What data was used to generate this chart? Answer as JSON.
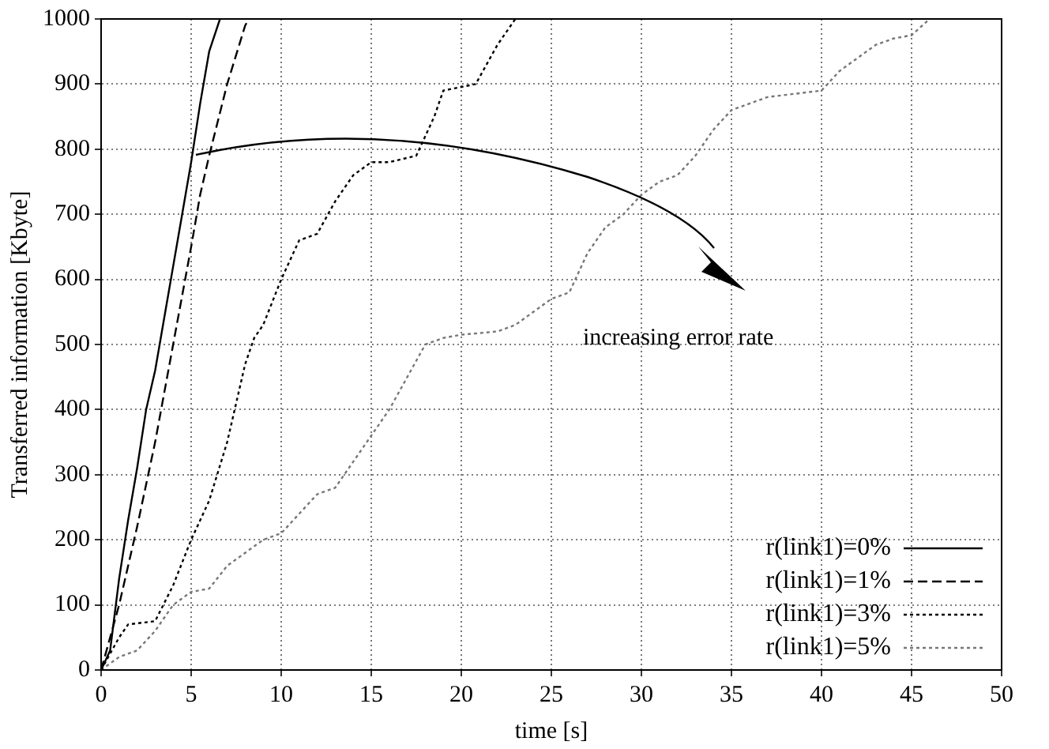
{
  "chart_data": {
    "type": "line",
    "xlabel": "time [s]",
    "ylabel": "Transferred information [Kbyte]",
    "xlim": [
      0,
      50
    ],
    "xticks": [
      0,
      5,
      10,
      15,
      20,
      25,
      30,
      35,
      40,
      45,
      50
    ],
    "ylim": [
      0,
      1000
    ],
    "yticks": [
      0,
      100,
      200,
      300,
      400,
      500,
      600,
      700,
      800,
      900,
      1000
    ],
    "grid": true,
    "legend": "bottom right",
    "marker": "none",
    "annotations": [
      "increasing error rate"
    ],
    "series": [
      {
        "name": "r(link1)=0%",
        "color": "#000000",
        "line_style": "solid",
        "x": [
          0,
          0.5,
          1,
          1.5,
          2,
          2.5,
          3,
          3.5,
          4,
          4.5,
          5,
          5.5,
          6,
          6.6
        ],
        "values": [
          0,
          30,
          140,
          230,
          310,
          400,
          460,
          540,
          620,
          700,
          780,
          870,
          950,
          1000
        ]
      },
      {
        "name": "r(link1)=1%",
        "color": "#000000",
        "line_style": "dashed",
        "x": [
          0,
          1,
          2,
          3,
          4,
          5,
          5.5,
          6,
          7,
          8,
          8.2
        ],
        "values": [
          0,
          100,
          220,
          350,
          500,
          650,
          730,
          790,
          900,
          990,
          1000
        ]
      },
      {
        "name": "r(link1)=3%",
        "color": "#000000",
        "line_style": "dotted",
        "x": [
          0,
          1,
          1.5,
          3,
          4,
          5,
          6,
          7,
          8,
          8.5,
          9,
          10,
          11,
          12,
          13,
          14,
          15,
          16,
          17.5,
          18.5,
          19,
          20.8,
          22,
          23
        ],
        "values": [
          0,
          50,
          70,
          75,
          130,
          200,
          260,
          350,
          470,
          510,
          530,
          600,
          660,
          670,
          720,
          760,
          780,
          780,
          790,
          850,
          890,
          900,
          960,
          1000
        ]
      },
      {
        "name": "r(link1)=5%",
        "color": "#777777",
        "line_style": "dotted",
        "x": [
          0,
          1,
          2,
          3,
          4,
          5,
          6,
          7,
          8,
          9,
          10,
          11,
          12,
          13,
          14,
          15,
          16,
          17,
          18,
          19,
          20,
          22,
          23,
          25,
          26,
          27,
          28,
          29,
          30,
          31,
          32,
          33,
          34,
          35,
          36,
          37,
          40,
          41,
          42,
          43,
          44,
          45,
          46
        ],
        "values": [
          0,
          20,
          30,
          60,
          100,
          120,
          125,
          160,
          180,
          200,
          210,
          240,
          270,
          280,
          320,
          360,
          400,
          450,
          500,
          510,
          515,
          520,
          530,
          570,
          580,
          640,
          680,
          700,
          730,
          750,
          760,
          790,
          830,
          860,
          870,
          880,
          890,
          920,
          940,
          960,
          970,
          975,
          1000
        ]
      }
    ]
  }
}
